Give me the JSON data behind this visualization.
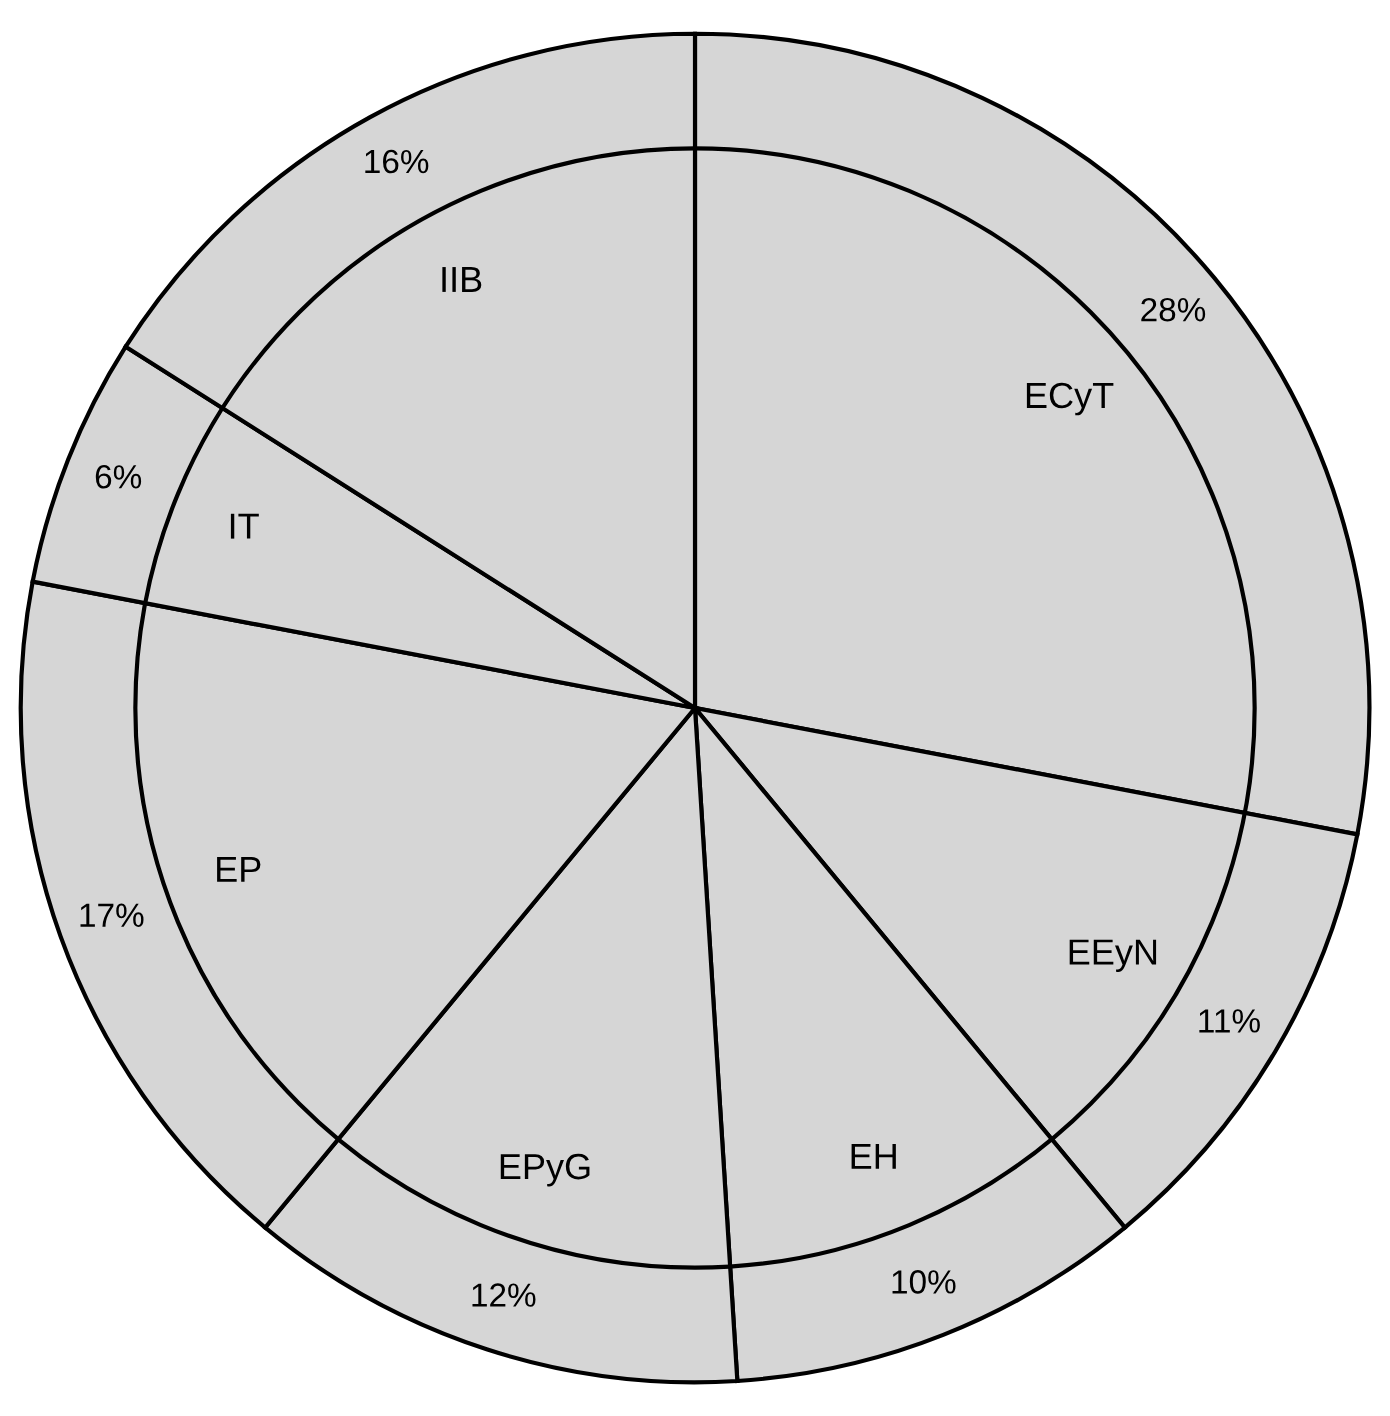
{
  "chart_data": {
    "type": "pie",
    "categories": [
      "ECyT",
      "EEyN",
      "EH",
      "EPyG",
      "EP",
      "IT",
      "IIB"
    ],
    "values": [
      28,
      11,
      10,
      12,
      17,
      6,
      16
    ],
    "value_labels": [
      "28%",
      "11%",
      "10%",
      "12%",
      "17%",
      "6%",
      "16%"
    ],
    "colors": [
      "#d6d6d6",
      "#d6d6d6",
      "#d6d6d6",
      "#d6d6d6",
      "#d6d6d6",
      "#d6d6d6",
      "#d6d6d6"
    ],
    "legend": false
  }
}
